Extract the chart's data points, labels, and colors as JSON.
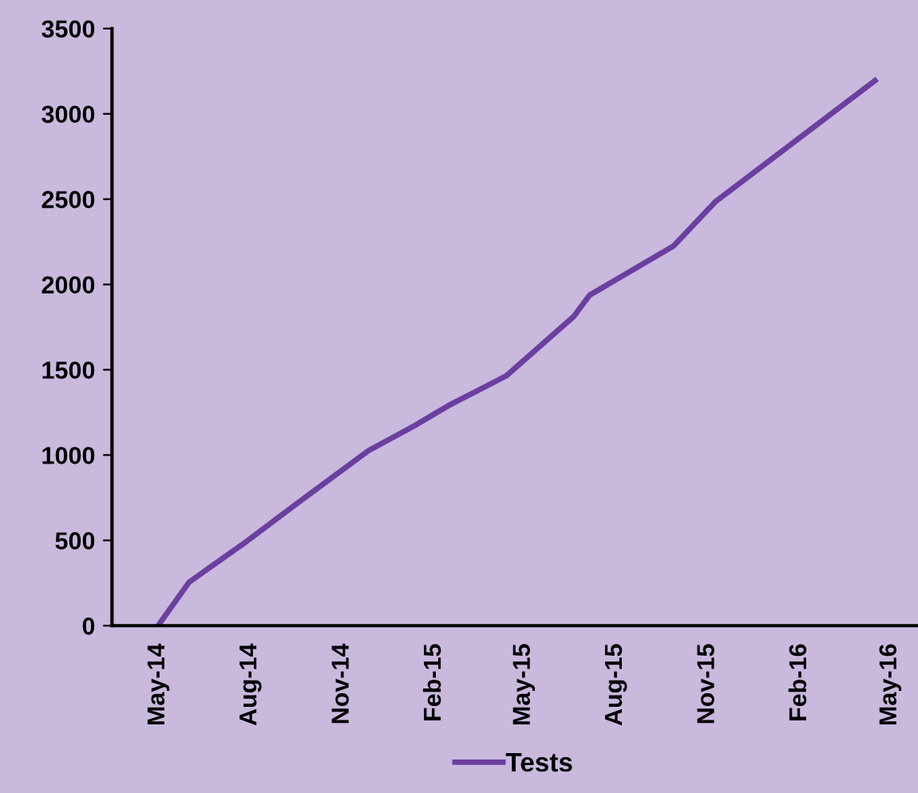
{
  "chart_data": {
    "type": "line",
    "x": [
      "2014-05-01",
      "2014-06-01",
      "2014-07-24",
      "2014-09-19",
      "2014-11-27",
      "2015-01-13",
      "2015-02-15",
      "2015-04-14",
      "2015-06-20",
      "2015-07-06",
      "2015-09-28",
      "2015-11-09",
      "2016-04-16"
    ],
    "series": [
      {
        "name": "Tests",
        "color": "#6b3fa0",
        "values": [
          0,
          255,
          475,
          726,
          1025,
          1175,
          1290,
          1465,
          1811,
          1937,
          2226,
          2487,
          3195
        ]
      }
    ],
    "xlim": [
      "2014-03-16",
      "2016-05-29"
    ],
    "xticks": [
      {
        "value": "2014-05-01",
        "label": "May-14"
      },
      {
        "value": "2014-08-01",
        "label": "Aug-14"
      },
      {
        "value": "2014-11-01",
        "label": "Nov-14"
      },
      {
        "value": "2015-02-01",
        "label": "Feb-15"
      },
      {
        "value": "2015-05-01",
        "label": "May-15"
      },
      {
        "value": "2015-08-01",
        "label": "Aug-15"
      },
      {
        "value": "2015-11-01",
        "label": "Nov-15"
      },
      {
        "value": "2016-02-01",
        "label": "Feb-16"
      },
      {
        "value": "2016-05-01",
        "label": "May-16"
      }
    ],
    "ylim": [
      0,
      3500
    ],
    "yticks": [
      0,
      500,
      1000,
      1500,
      2000,
      2500,
      3000,
      3500
    ],
    "grid": false,
    "legend": "bottom",
    "marker": "none",
    "line_style": "solid"
  }
}
